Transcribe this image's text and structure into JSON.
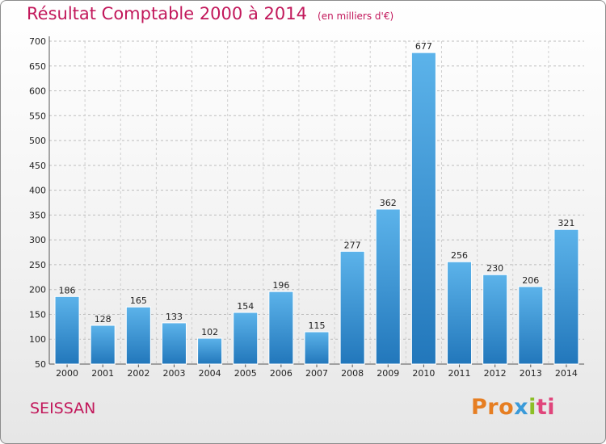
{
  "chart_data": {
    "type": "bar",
    "title": "Résultat Comptable 2000 à 2014",
    "subtitle": "(en milliers d'€)",
    "categories": [
      "2000",
      "2001",
      "2002",
      "2003",
      "2004",
      "2005",
      "2006",
      "2007",
      "2008",
      "2009",
      "2010",
      "2011",
      "2012",
      "2013",
      "2014"
    ],
    "values": [
      186,
      128,
      165,
      133,
      102,
      154,
      196,
      115,
      277,
      362,
      677,
      256,
      230,
      206,
      321
    ],
    "yticks": [
      50,
      100,
      150,
      200,
      250,
      300,
      350,
      400,
      450,
      500,
      550,
      600,
      650,
      700
    ],
    "ylim": [
      50,
      700
    ],
    "xlabel": "",
    "ylabel": "",
    "grid": true,
    "bar_color": "#3a9ad9"
  },
  "footer": {
    "commune": "SEISSAN",
    "logo": {
      "part1": "Pro",
      "part2": "x",
      "part3": "i",
      "part4": "ti"
    }
  }
}
